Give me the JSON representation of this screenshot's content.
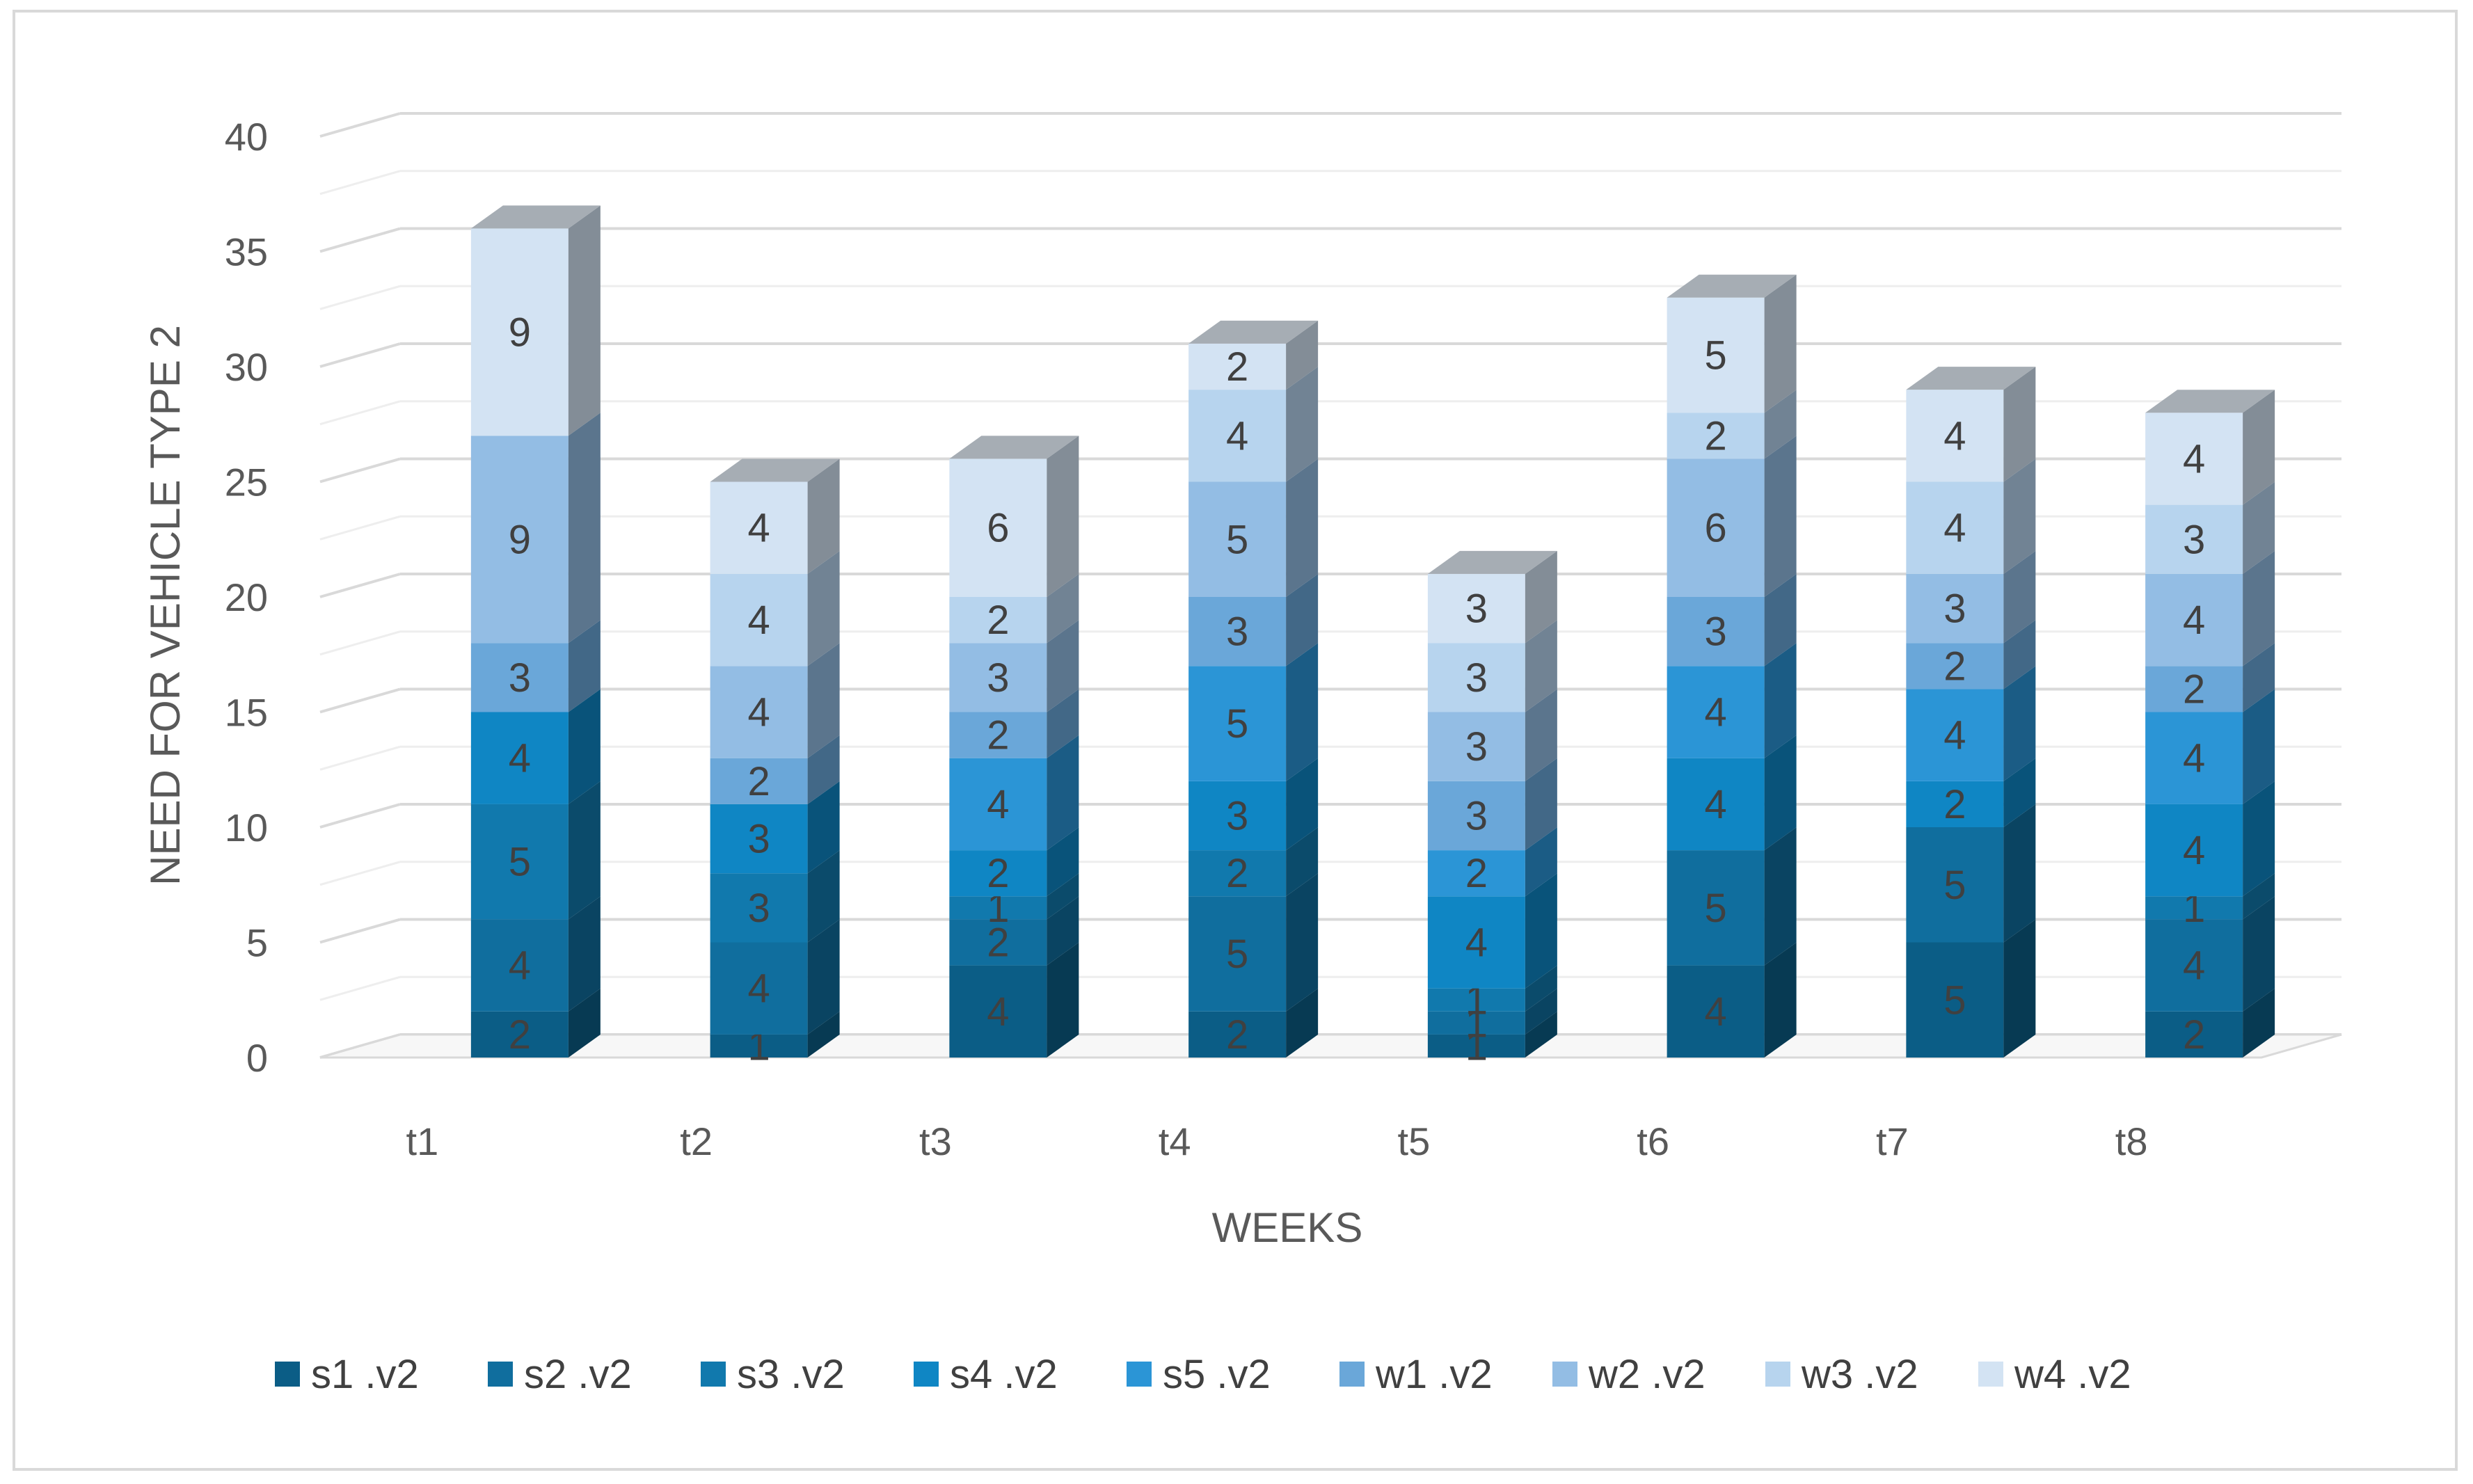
{
  "chart_data": {
    "type": "bar",
    "stacked": true,
    "three_d": true,
    "categories": [
      "t1",
      "t2",
      "t3",
      "t4",
      "t5",
      "t6",
      "t7",
      "t8"
    ],
    "series": [
      {
        "name": "s1 .v2",
        "values": [
          2,
          1,
          4,
          2,
          1,
          4,
          5,
          2
        ],
        "color": "#0b5d86"
      },
      {
        "name": "s2 .v2",
        "values": [
          4,
          4,
          2,
          5,
          1,
          5,
          5,
          4
        ],
        "color": "#106e9e"
      },
      {
        "name": "s3 .v2",
        "values": [
          5,
          3,
          1,
          2,
          1,
          0,
          0,
          1
        ],
        "color": "#1179ad"
      },
      {
        "name": "s4 .v2",
        "values": [
          4,
          3,
          2,
          3,
          4,
          4,
          2,
          4
        ],
        "color": "#0f86c4"
      },
      {
        "name": "s5 .v2",
        "values": [
          0,
          0,
          4,
          5,
          2,
          4,
          4,
          4
        ],
        "color": "#2b95d6"
      },
      {
        "name": "w1 .v2",
        "values": [
          3,
          2,
          2,
          3,
          3,
          3,
          2,
          2
        ],
        "color": "#6aa7d9"
      },
      {
        "name": "w2 .v2",
        "values": [
          9,
          4,
          3,
          5,
          3,
          6,
          3,
          4
        ],
        "color": "#93bde4"
      },
      {
        "name": "w3 .v2",
        "values": [
          0,
          4,
          2,
          4,
          3,
          2,
          4,
          3
        ],
        "color": "#b7d4ee"
      },
      {
        "name": "w4 .v2",
        "values": [
          9,
          4,
          6,
          2,
          3,
          5,
          4,
          4
        ],
        "color": "#d3e3f3"
      }
    ],
    "title": "",
    "xlabel": "WEEKS",
    "ylabel": "NEED FOR VEHICLE TYPE 2",
    "ylim": [
      0,
      40
    ],
    "yticks": [
      "0",
      "5",
      "10",
      "15",
      "20",
      "25",
      "30",
      "35",
      "40"
    ],
    "grid": true,
    "legend_position": "bottom"
  }
}
